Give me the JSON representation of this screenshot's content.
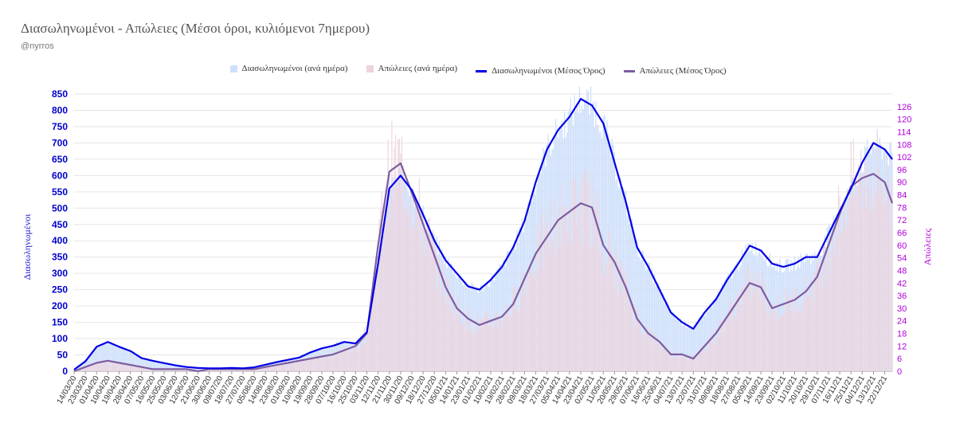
{
  "title": "Διασωληνωμένοι - Απώλειες (Μέσοι όροι, κυλιόμενοι 7ημερου)",
  "subtitle": "@nyrros",
  "legend": {
    "intubated_daily": "Διασωληνωμένοι (ανά ημέρα)",
    "deaths_daily": "Απώλειες (ανά ημέρα)",
    "intubated_avg": "Διασωληνωμένοι (Μέσος Όρος)",
    "deaths_avg": "Απώλειες (Μέσος Όρος)"
  },
  "colors": {
    "intubated_bar": "#cfe0fb",
    "deaths_bar": "#ecd3de",
    "intubated_line": "#0000e6",
    "deaths_line": "#7d5ca0",
    "left_axis": "#0000cc",
    "right_axis": "#b000d8"
  },
  "chart_data": {
    "type": "line",
    "ylabel": "Διασωληνωμένοι",
    "y2label": "Απώλειες",
    "ylim": [
      0,
      850
    ],
    "y2lim": [
      0,
      132
    ],
    "y_ticks": [
      0,
      50,
      100,
      150,
      200,
      250,
      300,
      350,
      400,
      450,
      500,
      550,
      600,
      650,
      700,
      750,
      800,
      850
    ],
    "y2_ticks": [
      0,
      6,
      12,
      18,
      24,
      30,
      36,
      42,
      48,
      54,
      60,
      66,
      72,
      78,
      84,
      90,
      96,
      102,
      108,
      114,
      120,
      126
    ],
    "x_start": "2020-03-14",
    "x_end": "2021-12-28",
    "x_ticks": [
      "14/03/20",
      "23/03/20",
      "01/04/20",
      "10/04/20",
      "19/04/20",
      "28/04/20",
      "07/05/20",
      "16/05/20",
      "25/05/20",
      "03/06/20",
      "12/06/20",
      "21/06/20",
      "30/06/20",
      "09/07/20",
      "18/07/20",
      "27/07/20",
      "05/08/20",
      "14/08/20",
      "23/08/20",
      "01/09/20",
      "10/09/20",
      "19/09/20",
      "28/09/20",
      "07/10/20",
      "16/10/20",
      "25/10/20",
      "03/11/20",
      "12/11/20",
      "21/11/20",
      "30/11/20",
      "09/12/20",
      "18/12/20",
      "27/12/20",
      "05/01/21",
      "14/01/21",
      "23/01/21",
      "01/02/21",
      "10/02/21",
      "19/02/21",
      "28/02/21",
      "09/03/21",
      "18/03/21",
      "27/03/21",
      "05/04/21",
      "14/04/21",
      "23/04/21",
      "02/05/21",
      "11/05/21",
      "20/05/21",
      "29/05/21",
      "07/06/21",
      "16/06/21",
      "25/06/21",
      "04/07/21",
      "13/07/21",
      "22/07/21",
      "31/07/21",
      "09/08/21",
      "18/08/21",
      "27/08/21",
      "05/09/21",
      "14/09/21",
      "23/09/21",
      "02/10/21",
      "11/10/21",
      "20/10/21",
      "29/10/21",
      "07/11/21",
      "16/11/21",
      "25/11/21",
      "04/12/21",
      "13/12/21",
      "22/12/21"
    ],
    "series": [
      {
        "name": "Διασωληνωμένοι (Μέσος Όρος)",
        "axis": "left",
        "x": [
          "2020-03-14",
          "2020-03-23",
          "2020-04-01",
          "2020-04-10",
          "2020-04-19",
          "2020-04-28",
          "2020-05-07",
          "2020-05-16",
          "2020-05-25",
          "2020-06-03",
          "2020-06-12",
          "2020-06-21",
          "2020-06-30",
          "2020-07-09",
          "2020-07-18",
          "2020-07-27",
          "2020-08-05",
          "2020-08-14",
          "2020-08-23",
          "2020-09-01",
          "2020-09-10",
          "2020-09-19",
          "2020-09-28",
          "2020-10-07",
          "2020-10-16",
          "2020-10-25",
          "2020-11-03",
          "2020-11-12",
          "2020-11-21",
          "2020-11-30",
          "2020-12-09",
          "2020-12-18",
          "2020-12-27",
          "2021-01-05",
          "2021-01-14",
          "2021-01-23",
          "2021-02-01",
          "2021-02-10",
          "2021-02-19",
          "2021-02-28",
          "2021-03-09",
          "2021-03-18",
          "2021-03-27",
          "2021-04-05",
          "2021-04-14",
          "2021-04-23",
          "2021-05-02",
          "2021-05-11",
          "2021-05-20",
          "2021-05-29",
          "2021-06-07",
          "2021-06-16",
          "2021-06-25",
          "2021-07-04",
          "2021-07-13",
          "2021-07-22",
          "2021-07-31",
          "2021-08-09",
          "2021-08-18",
          "2021-08-27",
          "2021-09-05",
          "2021-09-14",
          "2021-09-23",
          "2021-10-02",
          "2021-10-11",
          "2021-10-20",
          "2021-10-29",
          "2021-11-07",
          "2021-11-16",
          "2021-11-25",
          "2021-12-04",
          "2021-12-13",
          "2021-12-22",
          "2021-12-28"
        ],
        "values": [
          5,
          30,
          75,
          90,
          75,
          62,
          40,
          32,
          25,
          18,
          13,
          10,
          9,
          9,
          10,
          9,
          12,
          20,
          28,
          35,
          42,
          58,
          70,
          78,
          90,
          85,
          120,
          330,
          560,
          600,
          555,
          480,
          400,
          340,
          300,
          260,
          250,
          280,
          320,
          380,
          460,
          580,
          680,
          740,
          780,
          835,
          815,
          760,
          640,
          520,
          380,
          320,
          250,
          180,
          150,
          130,
          180,
          220,
          280,
          330,
          385,
          370,
          330,
          320,
          330,
          350,
          350,
          420,
          490,
          560,
          640,
          700,
          680,
          650
        ]
      },
      {
        "name": "Απώλειες (Μέσος Όρος)",
        "axis": "right",
        "x": [
          "2020-03-14",
          "2020-03-23",
          "2020-04-01",
          "2020-04-10",
          "2020-04-19",
          "2020-04-28",
          "2020-05-07",
          "2020-05-16",
          "2020-05-25",
          "2020-06-03",
          "2020-06-12",
          "2020-06-21",
          "2020-06-30",
          "2020-07-09",
          "2020-07-18",
          "2020-07-27",
          "2020-08-05",
          "2020-08-14",
          "2020-08-23",
          "2020-09-01",
          "2020-09-10",
          "2020-09-19",
          "2020-09-28",
          "2020-10-07",
          "2020-10-16",
          "2020-10-25",
          "2020-11-03",
          "2020-11-12",
          "2020-11-21",
          "2020-11-30",
          "2020-12-09",
          "2020-12-18",
          "2020-12-27",
          "2021-01-05",
          "2021-01-14",
          "2021-01-23",
          "2021-02-01",
          "2021-02-10",
          "2021-02-19",
          "2021-02-28",
          "2021-03-09",
          "2021-03-18",
          "2021-03-27",
          "2021-04-05",
          "2021-04-14",
          "2021-04-23",
          "2021-05-02",
          "2021-05-11",
          "2021-05-20",
          "2021-05-29",
          "2021-06-07",
          "2021-06-16",
          "2021-06-25",
          "2021-07-04",
          "2021-07-13",
          "2021-07-22",
          "2021-07-31",
          "2021-08-09",
          "2021-08-18",
          "2021-08-27",
          "2021-09-05",
          "2021-09-14",
          "2021-09-23",
          "2021-10-02",
          "2021-10-11",
          "2021-10-20",
          "2021-10-29",
          "2021-11-07",
          "2021-11-16",
          "2021-11-25",
          "2021-12-04",
          "2021-12-13",
          "2021-12-22",
          "2021-12-28"
        ],
        "values": [
          0,
          2,
          4,
          5,
          4,
          3,
          2,
          1,
          1,
          1,
          1,
          0,
          1,
          1,
          1,
          1,
          1,
          2,
          3,
          4,
          5,
          6,
          7,
          8,
          10,
          12,
          18,
          60,
          95,
          99,
          85,
          70,
          55,
          40,
          30,
          25,
          22,
          24,
          26,
          32,
          44,
          56,
          64,
          72,
          76,
          80,
          78,
          60,
          52,
          40,
          25,
          18,
          14,
          8,
          8,
          6,
          12,
          18,
          26,
          34,
          42,
          40,
          30,
          32,
          34,
          38,
          45,
          60,
          75,
          88,
          92,
          94,
          90,
          80
        ]
      }
    ]
  }
}
